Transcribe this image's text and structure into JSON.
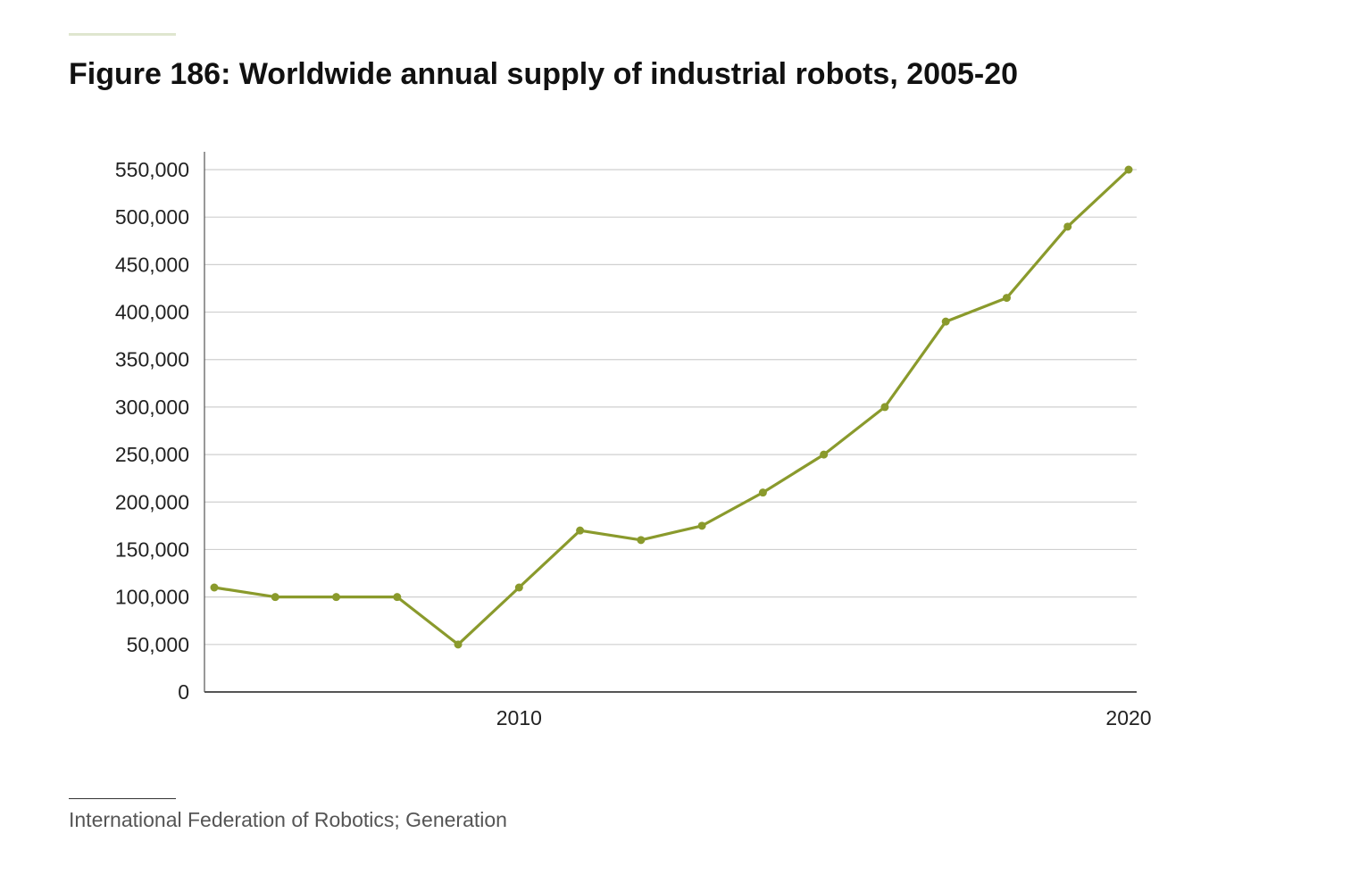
{
  "figure": {
    "title": "Figure 186: Worldwide annual supply of industrial robots, 2005-20",
    "source": "International Federation of Robotics; Generation"
  },
  "chart_data": {
    "type": "line",
    "title": "Figure 186: Worldwide annual supply of industrial robots, 2005-20",
    "xlabel": "",
    "ylabel": "",
    "x": [
      2005,
      2006,
      2007,
      2008,
      2009,
      2010,
      2011,
      2012,
      2013,
      2014,
      2015,
      2016,
      2017,
      2018,
      2019,
      2020
    ],
    "series": [
      {
        "values": [
          110000,
          100000,
          100000,
          100000,
          50000,
          110000,
          170000,
          160000,
          175000,
          210000,
          250000,
          300000,
          390000,
          415000,
          490000,
          550000
        ]
      }
    ],
    "xticks": [
      2010,
      2020
    ],
    "xtick_labels": [
      "2010",
      "2020"
    ],
    "yticks": [
      0,
      50000,
      100000,
      150000,
      200000,
      250000,
      300000,
      350000,
      400000,
      450000,
      500000,
      550000
    ],
    "ytick_labels": [
      "0",
      "50,000",
      "100,000",
      "150,000",
      "200,000",
      "250,000",
      "300,000",
      "350,000",
      "400,000",
      "450,000",
      "500,000",
      "550,000"
    ],
    "ylim": [
      0,
      550000
    ],
    "xlim": [
      2005,
      2020
    ],
    "grid": true,
    "legend": "none",
    "colors": {
      "line": "#8a9a2c",
      "grid": "#cfcfcf",
      "axis": "#555555"
    }
  }
}
